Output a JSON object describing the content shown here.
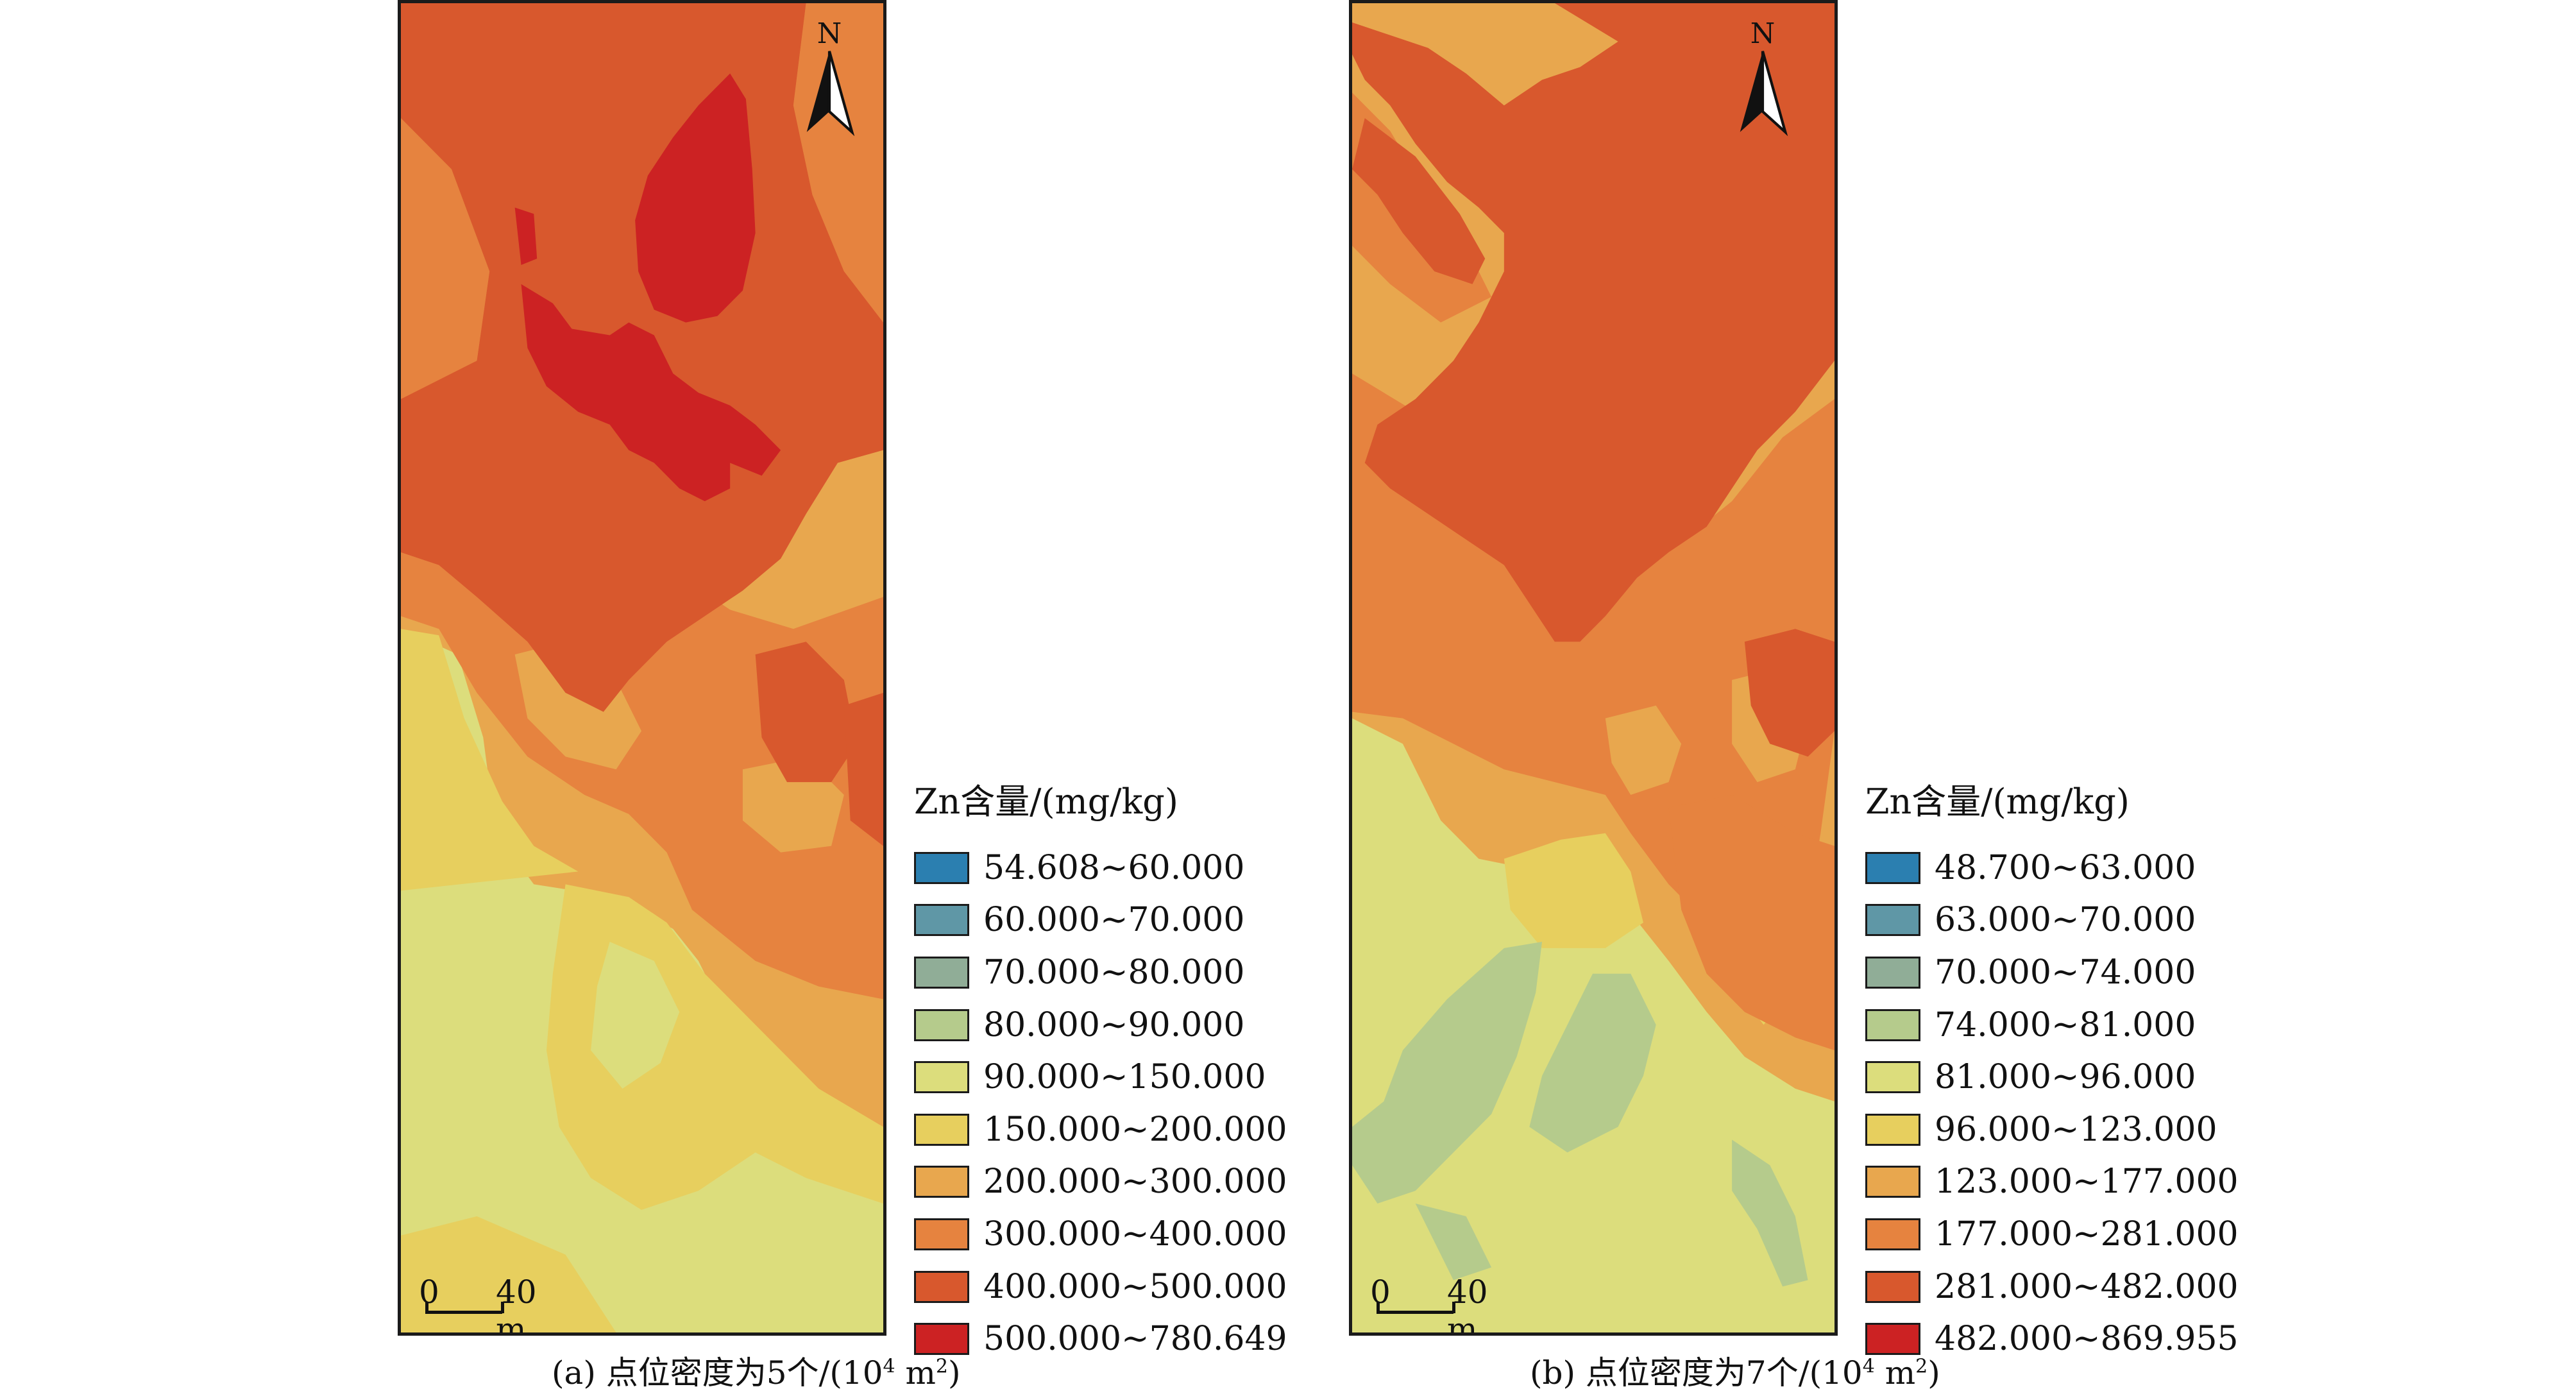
{
  "panels": [
    {
      "legend_title": "Zn含量/(mg/kg)",
      "legend": [
        {
          "label": "54.608~60.000",
          "color": "#2b7fb0"
        },
        {
          "label": "60.000~70.000",
          "color": "#5f97a6"
        },
        {
          "label": "70.000~80.000",
          "color": "#90ad97"
        },
        {
          "label": "80.000~90.000",
          "color": "#b5cb8c"
        },
        {
          "label": "90.000~150.000",
          "color": "#dcdd7c"
        },
        {
          "label": "150.000~200.000",
          "color": "#e7cf5e"
        },
        {
          "label": "200.000~300.000",
          "color": "#e8a74e"
        },
        {
          "label": "300.000~400.000",
          "color": "#e6833f"
        },
        {
          "label": "400.000~500.000",
          "color": "#d8582d"
        },
        {
          "label": "500.000~780.649",
          "color": "#cc2223"
        }
      ],
      "north_label": "N",
      "scale_zero": "0",
      "scale_value": "40 m",
      "caption_prefix": "(a) 点位密度为5个/(10",
      "caption_sup": "4",
      "caption_mid": " m",
      "caption_sup2": "2",
      "caption_suffix": ")"
    },
    {
      "legend_title": "Zn含量/(mg/kg)",
      "legend": [
        {
          "label": "48.700~63.000",
          "color": "#2b7fb0"
        },
        {
          "label": "63.000~70.000",
          "color": "#5f97a6"
        },
        {
          "label": "70.000~74.000",
          "color": "#90ad97"
        },
        {
          "label": "74.000~81.000",
          "color": "#b5cb8c"
        },
        {
          "label": "81.000~96.000",
          "color": "#dcdd7c"
        },
        {
          "label": "96.000~123.000",
          "color": "#e7cf5e"
        },
        {
          "label": "123.000~177.000",
          "color": "#e8a74e"
        },
        {
          "label": "177.000~281.000",
          "color": "#e6833f"
        },
        {
          "label": "281.000~482.000",
          "color": "#d8582d"
        },
        {
          "label": "482.000~869.955",
          "color": "#cc2223"
        }
      ],
      "north_label": "N",
      "scale_zero": "0",
      "scale_value": "40 m",
      "caption_prefix": "(b) 点位密度为7个/(10",
      "caption_sup": "4",
      "caption_mid": " m",
      "caption_sup2": "2",
      "caption_suffix": ")"
    }
  ]
}
